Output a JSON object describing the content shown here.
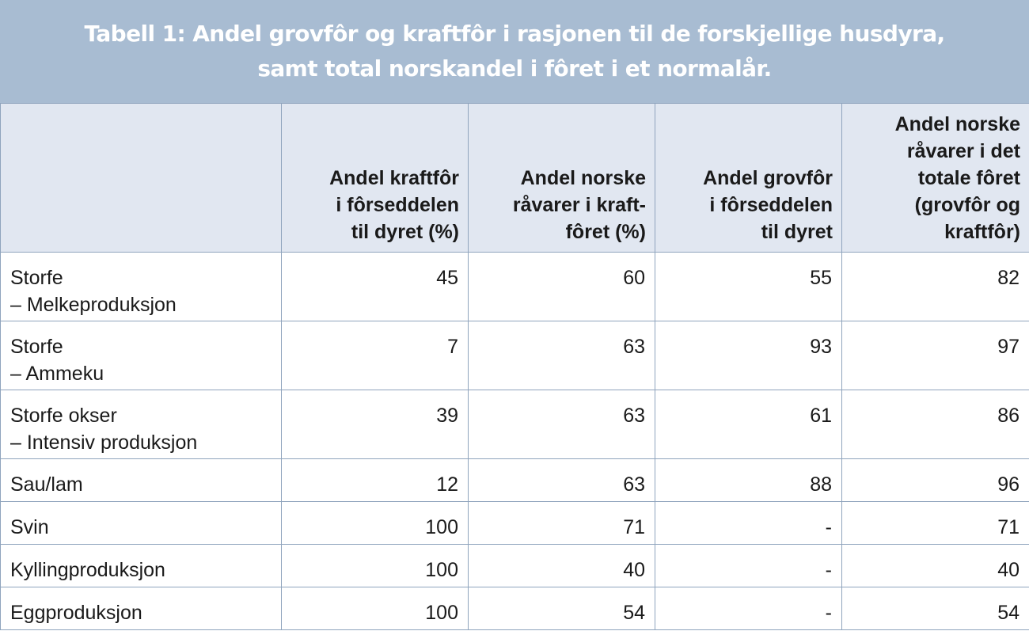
{
  "title": {
    "line1": "Tabell 1: Andel grovfôr og kraftfôr i rasjonen til de forskjellige husdyra,",
    "line2": "samt total norskandel i fôret i et normalår."
  },
  "headers": [
    {
      "lines": [
        ""
      ]
    },
    {
      "lines": [
        "Andel kraftfôr",
        "i fôrseddelen",
        "til dyret (%)"
      ]
    },
    {
      "lines": [
        "Andel norske",
        "råvarer i kraft-",
        "fôret (%)"
      ]
    },
    {
      "lines": [
        "Andel grovfôr",
        "i fôrseddelen",
        "til dyret"
      ]
    },
    {
      "lines": [
        "Andel norske",
        "råvarer i det",
        "totale fôret",
        "(grovfôr og",
        "kraftfôr)"
      ]
    }
  ],
  "rows": [
    {
      "label": [
        "Storfe",
        "– Melkeproduksjon"
      ],
      "values": [
        "45",
        "60",
        "55",
        "82"
      ]
    },
    {
      "label": [
        "Storfe",
        "– Ammeku"
      ],
      "values": [
        "7",
        "63",
        "93",
        "97"
      ]
    },
    {
      "label": [
        "Storfe okser",
        "– Intensiv produksjon"
      ],
      "values": [
        "39",
        "63",
        "61",
        "86"
      ]
    },
    {
      "label": [
        "Sau/lam"
      ],
      "values": [
        "12",
        "63",
        "88",
        "96"
      ]
    },
    {
      "label": [
        "Svin"
      ],
      "values": [
        "100",
        "71",
        "-",
        "71"
      ]
    },
    {
      "label": [
        "Kyllingproduksjon"
      ],
      "values": [
        "100",
        "40",
        "-",
        "40"
      ]
    },
    {
      "label": [
        "Eggproduksjon"
      ],
      "values": [
        "100",
        "54",
        "-",
        "54"
      ]
    }
  ],
  "colors": {
    "title_band": "#a8bcd2",
    "header_bg": "#e1e7f1",
    "border": "#8fa4bd",
    "title_text": "#ffffff"
  }
}
